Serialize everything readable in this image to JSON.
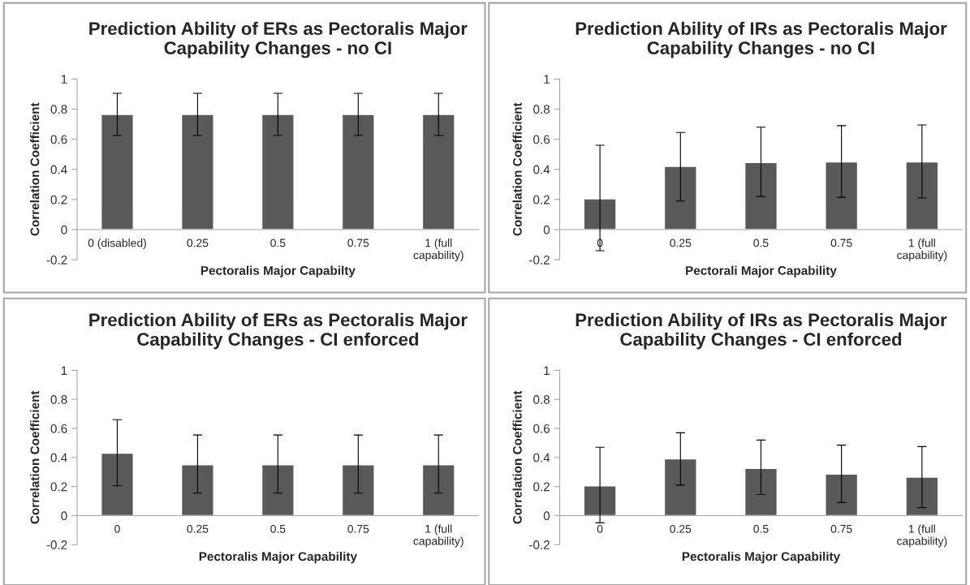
{
  "chart_data": [
    {
      "type": "bar",
      "title": "Prediction Ability of ERs as Pectoralis Major\nCapability Changes - no CI",
      "xlabel": "Pectoralis Major Capabilty",
      "ylabel": "Correlation Coefficient",
      "categories": [
        "0 (disabled)",
        "0.25",
        "0.5",
        "0.75",
        "1 (full\ncapability)"
      ],
      "values": [
        0.765,
        0.765,
        0.765,
        0.765,
        0.765
      ],
      "errors": [
        [
          0.625,
          0.905
        ],
        [
          0.625,
          0.905
        ],
        [
          0.625,
          0.905
        ],
        [
          0.625,
          0.905
        ],
        [
          0.625,
          0.905
        ]
      ],
      "color": "#595959",
      "ylim": [
        -0.2,
        1
      ],
      "yticks": [
        -0.2,
        0,
        0.2,
        0.4,
        0.6,
        0.8,
        1
      ],
      "grid": false
    },
    {
      "type": "bar",
      "title": "Prediction Ability of IRs as Pectoralis Major\nCapability Changes - no CI",
      "xlabel": "Pectorali Major Capability",
      "ylabel": "Correlation Coefficient",
      "categories": [
        "0",
        "0.25",
        "0.5",
        "0.75",
        "1 (full\ncapability)"
      ],
      "values": [
        0.205,
        0.42,
        0.445,
        0.45,
        0.45
      ],
      "errors": [
        [
          -0.14,
          0.56
        ],
        [
          0.19,
          0.645
        ],
        [
          0.22,
          0.68
        ],
        [
          0.215,
          0.69
        ],
        [
          0.21,
          0.695
        ]
      ],
      "color": "#595959",
      "ylim": [
        -0.2,
        1
      ],
      "yticks": [
        -0.2,
        0,
        0.2,
        0.4,
        0.6,
        0.8,
        1
      ],
      "grid": false
    },
    {
      "type": "bar",
      "title": "Prediction Ability of ERs as Pectoralis Major\nCapability Changes - CI enforced",
      "xlabel": "Pectoralis Major Capability",
      "ylabel": "Correlation Coefficient",
      "categories": [
        "0",
        "0.25",
        "0.5",
        "0.75",
        "1 (full\ncapability)"
      ],
      "values": [
        0.43,
        0.35,
        0.35,
        0.35,
        0.35
      ],
      "errors": [
        [
          0.205,
          0.66
        ],
        [
          0.155,
          0.555
        ],
        [
          0.155,
          0.555
        ],
        [
          0.155,
          0.555
        ],
        [
          0.155,
          0.555
        ]
      ],
      "color": "#595959",
      "ylim": [
        -0.2,
        1
      ],
      "yticks": [
        -0.2,
        0,
        0.2,
        0.4,
        0.6,
        0.8,
        1
      ],
      "grid": false
    },
    {
      "type": "bar",
      "title": "Prediction Ability of IRs as Pectoralis Major\nCapability Changes - CI enforced",
      "xlabel": "Pectoralis Major Capability",
      "ylabel": "Correlation Coefficient",
      "categories": [
        "0",
        "0.25",
        "0.5",
        "0.75",
        "1 (full\ncapability)"
      ],
      "values": [
        0.205,
        0.39,
        0.325,
        0.285,
        0.265
      ],
      "errors": [
        [
          -0.05,
          0.47
        ],
        [
          0.21,
          0.57
        ],
        [
          0.145,
          0.52
        ],
        [
          0.09,
          0.485
        ],
        [
          0.055,
          0.475
        ]
      ],
      "color": "#595959",
      "ylim": [
        -0.2,
        1
      ],
      "yticks": [
        -0.2,
        0,
        0.2,
        0.4,
        0.6,
        0.8,
        1
      ],
      "grid": false
    }
  ]
}
